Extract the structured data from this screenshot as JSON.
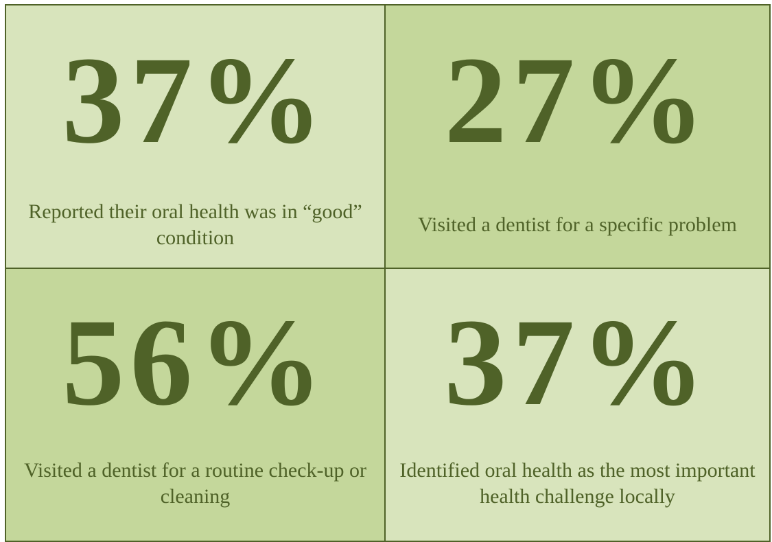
{
  "tiles": [
    {
      "stat": "37%",
      "label": "Reported their oral health was in “good” condition"
    },
    {
      "stat": "27%",
      "label": "Visited a dentist for a specific problem"
    },
    {
      "stat": "56%",
      "label": "Visited a dentist for a routine check-up or cleaning"
    },
    {
      "stat": "37%",
      "label": "Identified oral health as the most important health challenge locally"
    }
  ]
}
